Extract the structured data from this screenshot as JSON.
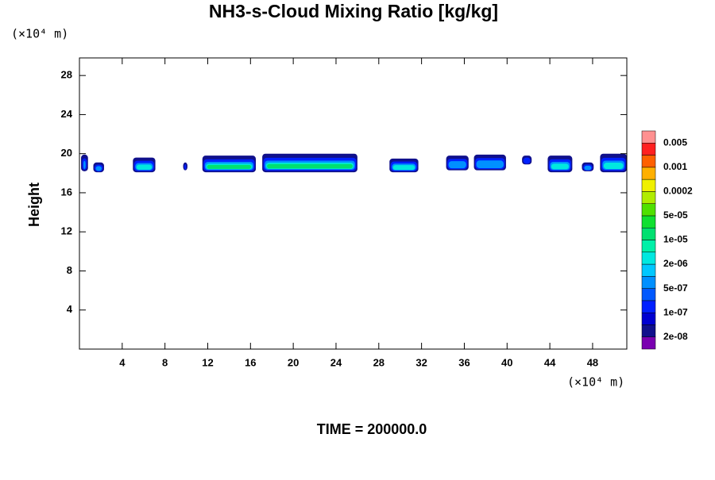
{
  "chart_data": {
    "type": "contour",
    "title": "NH3-s-Cloud Mixing Ratio [kg/kg]",
    "ylabel": "Height",
    "xunit": "(×10⁴ m)",
    "yunit": "(×10⁴ m)",
    "footer": "TIME = 200000.0",
    "xlim": [
      0,
      51.2
    ],
    "ylim": [
      0,
      29.8
    ],
    "xticks": [
      4,
      8,
      12,
      16,
      20,
      24,
      28,
      32,
      36,
      40,
      44,
      48
    ],
    "yticks": [
      4,
      8,
      12,
      16,
      20,
      24,
      28
    ],
    "colorbar": {
      "colors": [
        "#7a00b0",
        "#10108c",
        "#0000d0",
        "#0020ff",
        "#0058ff",
        "#0090ff",
        "#00c8ff",
        "#00e8e0",
        "#00f0a8",
        "#00e070",
        "#10e030",
        "#50e000",
        "#b0ec00",
        "#f0f000",
        "#ffb000",
        "#ff6000",
        "#ff2020",
        "#ff9090"
      ],
      "labels": [
        {
          "value": 2e-08,
          "label": "2e-08"
        },
        {
          "value": 1e-07,
          "label": "1e-07"
        },
        {
          "value": 5e-07,
          "label": "5e-07"
        },
        {
          "value": 2e-06,
          "label": "2e-06"
        },
        {
          "value": 1e-05,
          "label": "1e-05"
        },
        {
          "value": 5e-05,
          "label": "5e-05"
        },
        0.0002,
        0.001,
        0.005
      ]
    },
    "cells": [
      {
        "x": [
          0.15,
          0.8
        ],
        "y": [
          18.2,
          19.9
        ],
        "peak": 5e-07
      },
      {
        "x": [
          1.3,
          2.3
        ],
        "y": [
          18.1,
          19.1
        ],
        "peak": 5e-07
      },
      {
        "x": [
          5.0,
          7.1
        ],
        "y": [
          18.1,
          19.6
        ],
        "peak": 2e-06
      },
      {
        "x": [
          9.7,
          10.1
        ],
        "y": [
          18.3,
          19.1
        ],
        "peak": 5e-07
      },
      {
        "x": [
          11.5,
          16.5
        ],
        "y": [
          18.1,
          19.8
        ],
        "peak": 1e-05
      },
      {
        "x": [
          17.1,
          26.0
        ],
        "y": [
          18.1,
          20.0
        ],
        "peak": 1e-05
      },
      {
        "x": [
          29.0,
          31.7
        ],
        "y": [
          18.1,
          19.5
        ],
        "peak": 2e-06
      },
      {
        "x": [
          34.3,
          36.4
        ],
        "y": [
          18.3,
          19.8
        ],
        "peak": 5e-07
      },
      {
        "x": [
          36.9,
          39.9
        ],
        "y": [
          18.3,
          19.9
        ],
        "peak": 5e-07
      },
      {
        "x": [
          41.4,
          42.3
        ],
        "y": [
          18.9,
          19.8
        ],
        "peak": 1e-07
      },
      {
        "x": [
          43.8,
          46.1
        ],
        "y": [
          18.1,
          19.8
        ],
        "peak": 2e-06
      },
      {
        "x": [
          47.0,
          48.1
        ],
        "y": [
          18.2,
          19.1
        ],
        "peak": 5e-07
      },
      {
        "x": [
          48.7,
          51.2
        ],
        "y": [
          18.1,
          20.0
        ],
        "peak": 2e-06
      }
    ]
  }
}
